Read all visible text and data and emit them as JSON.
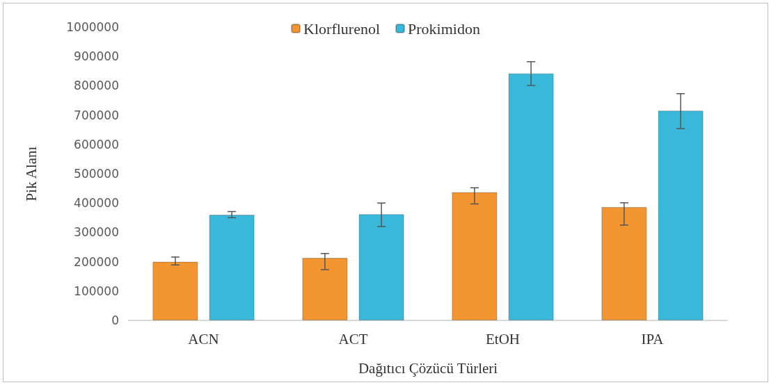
{
  "chart_data": {
    "type": "bar",
    "xlabel": "Dağıtıcı Çözücü Türleri",
    "ylabel": "Pik Alanı",
    "categories": [
      "ACN",
      "ACT",
      "EtOH",
      "IPA"
    ],
    "series": [
      {
        "name": "Klorflurenol",
        "color": "#f39530",
        "values": [
          200000,
          213000,
          437000,
          386000
        ],
        "errors": [
          [
            189000,
            216000
          ],
          [
            173000,
            228000
          ],
          [
            397000,
            452000
          ],
          [
            325000,
            401000
          ]
        ]
      },
      {
        "name": "Prokimidon",
        "color": "#3ab8d9",
        "values": [
          360000,
          362000,
          842000,
          715000
        ],
        "errors": [
          [
            350000,
            371000
          ],
          [
            320000,
            400000
          ],
          [
            801000,
            882000
          ],
          [
            654000,
            773000
          ]
        ]
      }
    ],
    "ylim": [
      0,
      1000000
    ],
    "yticks": [
      0,
      100000,
      200000,
      300000,
      400000,
      500000,
      600000,
      700000,
      800000,
      900000,
      1000000
    ],
    "grid": false,
    "legend": "top"
  }
}
